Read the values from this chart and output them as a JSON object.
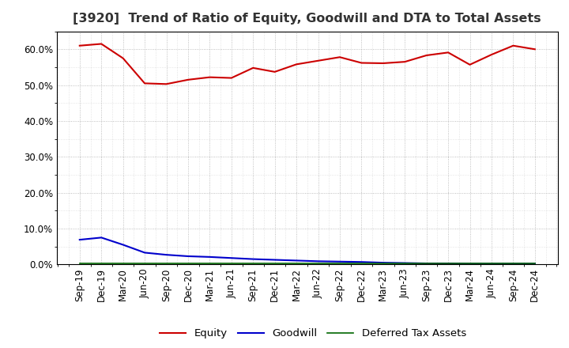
{
  "title": "[3920]  Trend of Ratio of Equity, Goodwill and DTA to Total Assets",
  "x_labels": [
    "Sep-19",
    "Dec-19",
    "Mar-20",
    "Jun-20",
    "Sep-20",
    "Dec-20",
    "Mar-21",
    "Jun-21",
    "Sep-21",
    "Dec-21",
    "Mar-22",
    "Jun-22",
    "Sep-22",
    "Dec-22",
    "Mar-23",
    "Jun-23",
    "Sep-23",
    "Dec-23",
    "Mar-24",
    "Jun-24",
    "Sep-24",
    "Dec-24"
  ],
  "equity": [
    0.61,
    0.615,
    0.575,
    0.505,
    0.503,
    0.515,
    0.522,
    0.52,
    0.548,
    0.537,
    0.558,
    0.568,
    0.578,
    0.562,
    0.561,
    0.565,
    0.583,
    0.591,
    0.557,
    0.585,
    0.61,
    0.6
  ],
  "goodwill": [
    0.069,
    0.075,
    0.055,
    0.033,
    0.027,
    0.023,
    0.021,
    0.018,
    0.015,
    0.013,
    0.011,
    0.009,
    0.008,
    0.007,
    0.005,
    0.004,
    0.003,
    0.003,
    0.002,
    0.002,
    0.002,
    0.002
  ],
  "dta": [
    0.002,
    0.002,
    0.002,
    0.002,
    0.002,
    0.002,
    0.002,
    0.002,
    0.002,
    0.002,
    0.002,
    0.002,
    0.002,
    0.002,
    0.002,
    0.002,
    0.002,
    0.002,
    0.002,
    0.002,
    0.002,
    0.002
  ],
  "equity_color": "#cc0000",
  "goodwill_color": "#0000cc",
  "dta_color": "#006600",
  "bg_color": "#ffffff",
  "plot_bg_color": "#ffffff",
  "grid_color": "#999999",
  "ylim": [
    0.0,
    0.65
  ],
  "yticks": [
    0.0,
    0.1,
    0.2,
    0.3,
    0.4,
    0.5,
    0.6
  ],
  "legend_labels": [
    "Equity",
    "Goodwill",
    "Deferred Tax Assets"
  ],
  "title_fontsize": 11.5,
  "tick_fontsize": 8.5,
  "legend_fontsize": 9.5
}
